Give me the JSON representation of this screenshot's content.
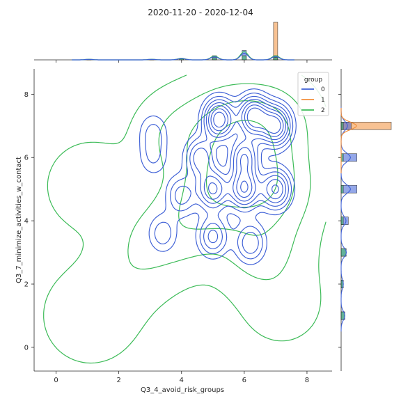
{
  "chart_data": {
    "type": "kde-jointplot",
    "title": "2020-11-20 - 2020-12-04",
    "xlabel": "Q3_4_avoid_risk_groups",
    "ylabel": "Q3_7_minimize_activities_w_contact",
    "xlim": [
      -0.7,
      8.8
    ],
    "ylim": [
      -0.75,
      8.8
    ],
    "xticks": [
      0,
      2,
      4,
      6,
      8
    ],
    "yticks": [
      0,
      2,
      4,
      6,
      8
    ],
    "legend": {
      "title": "group",
      "placement": "top-right",
      "entries": [
        "0",
        "1",
        "2"
      ]
    },
    "series_colors": [
      "#3d5fd6",
      "#f28f3b",
      "#3cbb57"
    ],
    "series": [
      {
        "name": "0",
        "kde_peaks": [
          {
            "x": 5.2,
            "y": 7.2,
            "h": 1.0
          },
          {
            "x": 6.3,
            "y": 7.3,
            "h": 1.0
          },
          {
            "x": 7.0,
            "y": 7.0,
            "h": 0.95
          },
          {
            "x": 6.0,
            "y": 5.0,
            "h": 0.85
          },
          {
            "x": 5.0,
            "y": 5.0,
            "h": 0.75
          },
          {
            "x": 7.0,
            "y": 5.0,
            "h": 0.75
          },
          {
            "x": 6.0,
            "y": 6.0,
            "h": 0.7
          },
          {
            "x": 4.6,
            "y": 6.0,
            "h": 0.55
          },
          {
            "x": 5.0,
            "y": 3.5,
            "h": 0.5
          },
          {
            "x": 6.2,
            "y": 3.3,
            "h": 0.45
          },
          {
            "x": 4.0,
            "y": 4.8,
            "h": 0.4
          },
          {
            "x": 3.4,
            "y": 3.6,
            "h": 0.3
          },
          {
            "x": 3.1,
            "y": 6.8,
            "h": 0.25
          },
          {
            "x": 3.1,
            "y": 6.0,
            "h": 0.22
          }
        ]
      },
      {
        "name": "2",
        "kde_peaks": [
          {
            "x": 6.0,
            "y": 5.8,
            "h": 1.0
          },
          {
            "x": 5.2,
            "y": 5.0,
            "h": 0.85
          },
          {
            "x": 6.8,
            "y": 5.0,
            "h": 0.85
          },
          {
            "x": 5.5,
            "y": 7.0,
            "h": 0.7
          },
          {
            "x": 6.8,
            "y": 7.0,
            "h": 0.7
          },
          {
            "x": 4.2,
            "y": 4.0,
            "h": 0.5
          },
          {
            "x": 4.0,
            "y": 6.6,
            "h": 0.4
          },
          {
            "x": 6.5,
            "y": 3.2,
            "h": 0.5
          },
          {
            "x": 3.0,
            "y": 3.3,
            "h": 0.3
          },
          {
            "x": 1.1,
            "y": 5.1,
            "h": 0.22
          },
          {
            "x": 1.1,
            "y": 1.0,
            "h": 0.28
          },
          {
            "x": 2.2,
            "y": 2.2,
            "h": 0.14
          },
          {
            "x": 7.2,
            "y": 1.4,
            "h": 0.16
          }
        ]
      }
    ],
    "marginal_x_bins": [
      {
        "x": 1.05,
        "g0": 1,
        "g2": 1,
        "g1": 0
      },
      {
        "x": 3.05,
        "g0": 1,
        "g2": 1,
        "g1": 0
      },
      {
        "x": 4.0,
        "g0": 3,
        "g2": 2,
        "g1": 0
      },
      {
        "x": 5.05,
        "g0": 8,
        "g2": 4,
        "g1": 0
      },
      {
        "x": 6.0,
        "g0": 18,
        "g2": 8,
        "g1": 0
      },
      {
        "x": 7.0,
        "g0": 8,
        "g2": 5,
        "g1": 72
      }
    ],
    "marginal_y_bins": [
      {
        "y": 7.0,
        "g0": 14,
        "g2": 3,
        "g1": 70
      },
      {
        "y": 6.0,
        "g0": 22,
        "g2": 3,
        "g1": 0
      },
      {
        "y": 5.0,
        "g0": 22,
        "g2": 3,
        "g1": 0
      },
      {
        "y": 4.0,
        "g0": 10,
        "g2": 3,
        "g1": 0
      },
      {
        "y": 3.0,
        "g0": 7,
        "g2": 7,
        "g1": 0
      },
      {
        "y": 2.0,
        "g0": 3,
        "g2": 3,
        "g1": 0
      },
      {
        "y": 1.0,
        "g0": 5,
        "g2": 5,
        "g1": 0
      }
    ]
  }
}
